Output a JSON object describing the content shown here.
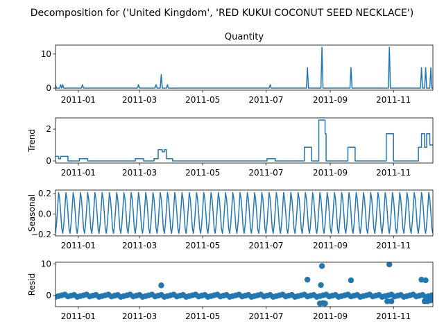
{
  "figure": {
    "suptitle": "Decomposition for ('United Kingdom', 'RED KUKUI COCONUT SEED NECKLACE')"
  },
  "colors": {
    "line": "#1f77b4",
    "axis": "#000000",
    "background": "#ffffff"
  },
  "chart_data": [
    {
      "type": "line",
      "title": "Quantity",
      "ylabel": "",
      "xlim": [
        "2010-12-10",
        "2011-12-09"
      ],
      "ylim": [
        -0.6,
        12.6
      ],
      "yticks": [
        0,
        10
      ],
      "xticks": [
        "2011-01",
        "2011-03",
        "2011-05",
        "2011-07",
        "2011-09",
        "2011-11"
      ],
      "spikes": [
        {
          "x": "2010-12-10",
          "y": 1
        },
        {
          "x": "2010-12-15",
          "y": 1
        },
        {
          "x": "2010-12-17",
          "y": 1
        },
        {
          "x": "2011-01-05",
          "y": 1
        },
        {
          "x": "2011-02-28",
          "y": 1
        },
        {
          "x": "2011-03-17",
          "y": 1
        },
        {
          "x": "2011-03-22",
          "y": 4
        },
        {
          "x": "2011-03-28",
          "y": 1
        },
        {
          "x": "2011-07-05",
          "y": 1
        },
        {
          "x": "2011-08-10",
          "y": 6
        },
        {
          "x": "2011-08-24",
          "y": 12
        },
        {
          "x": "2011-09-21",
          "y": 6
        },
        {
          "x": "2011-10-28",
          "y": 12
        },
        {
          "x": "2011-11-28",
          "y": 6
        },
        {
          "x": "2011-12-02",
          "y": 6
        },
        {
          "x": "2011-12-07",
          "y": 6
        }
      ]
    },
    {
      "type": "line",
      "title": "",
      "ylabel": "Trend",
      "xlim": [
        "2010-12-10",
        "2011-12-09"
      ],
      "ylim": [
        -0.13,
        2.7
      ],
      "yticks": [
        0,
        2
      ],
      "xticks": [
        "2011-01",
        "2011-03",
        "2011-05",
        "2011-07",
        "2011-09",
        "2011-11"
      ],
      "steps": [
        {
          "start": "2010-12-10",
          "end": "2010-12-13",
          "y": 0.29
        },
        {
          "start": "2010-12-13",
          "end": "2010-12-15",
          "y": 0.14
        },
        {
          "start": "2010-12-15",
          "end": "2010-12-22",
          "y": 0.29
        },
        {
          "start": "2010-12-22",
          "end": "2011-01-02",
          "y": 0.0
        },
        {
          "start": "2011-01-02",
          "end": "2011-01-10",
          "y": 0.14
        },
        {
          "start": "2011-01-10",
          "end": "2011-02-25",
          "y": 0.0
        },
        {
          "start": "2011-02-25",
          "end": "2011-03-05",
          "y": 0.14
        },
        {
          "start": "2011-03-05",
          "end": "2011-03-15",
          "y": 0.0
        },
        {
          "start": "2011-03-15",
          "end": "2011-03-19",
          "y": 0.14
        },
        {
          "start": "2011-03-19",
          "end": "2011-03-23",
          "y": 0.71
        },
        {
          "start": "2011-03-23",
          "end": "2011-03-25",
          "y": 0.57
        },
        {
          "start": "2011-03-25",
          "end": "2011-03-27",
          "y": 0.71
        },
        {
          "start": "2011-03-27",
          "end": "2011-04-02",
          "y": 0.14
        },
        {
          "start": "2011-04-02",
          "end": "2011-07-02",
          "y": 0.0
        },
        {
          "start": "2011-07-02",
          "end": "2011-07-10",
          "y": 0.14
        },
        {
          "start": "2011-07-10",
          "end": "2011-08-07",
          "y": 0.0
        },
        {
          "start": "2011-08-07",
          "end": "2011-08-14",
          "y": 0.86
        },
        {
          "start": "2011-08-14",
          "end": "2011-08-21",
          "y": 0.0
        },
        {
          "start": "2011-08-21",
          "end": "2011-08-27",
          "y": 2.57
        },
        {
          "start": "2011-08-27",
          "end": "2011-08-28",
          "y": 1.71
        },
        {
          "start": "2011-08-28",
          "end": "2011-09-18",
          "y": 0.0
        },
        {
          "start": "2011-09-18",
          "end": "2011-09-25",
          "y": 0.86
        },
        {
          "start": "2011-09-25",
          "end": "2011-10-25",
          "y": 0.0
        },
        {
          "start": "2011-10-25",
          "end": "2011-11-01",
          "y": 1.71
        },
        {
          "start": "2011-11-01",
          "end": "2011-11-25",
          "y": 0.0
        },
        {
          "start": "2011-11-25",
          "end": "2011-11-28",
          "y": 0.86
        },
        {
          "start": "2011-11-28",
          "end": "2011-12-01",
          "y": 1.71
        },
        {
          "start": "2011-12-01",
          "end": "2011-12-03",
          "y": 0.86
        },
        {
          "start": "2011-12-03",
          "end": "2011-12-06",
          "y": 1.71
        },
        {
          "start": "2011-12-06",
          "end": "2011-12-09",
          "y": 1.0
        }
      ]
    },
    {
      "type": "line",
      "title": "",
      "ylabel": "Seasonal",
      "xlim": [
        "2010-12-10",
        "2011-12-09"
      ],
      "ylim": [
        -0.215,
        0.235
      ],
      "yticks": [
        -0.2,
        0.0,
        0.2
      ],
      "xticks": [
        "2011-01",
        "2011-03",
        "2011-05",
        "2011-07",
        "2011-09",
        "2011-11"
      ],
      "period_days": 7,
      "weekly_pattern": [
        -0.19,
        -0.1,
        0.05,
        0.21,
        0.15,
        0.02,
        -0.14
      ]
    },
    {
      "type": "scatter",
      "title": "",
      "ylabel": "Resid",
      "xlim": [
        "2010-12-10",
        "2011-12-09"
      ],
      "ylim": [
        -3.5,
        10.5
      ],
      "yticks": [
        0,
        10
      ],
      "xticks": [
        "2011-01",
        "2011-03",
        "2011-05",
        "2011-07",
        "2011-09",
        "2011-11"
      ],
      "baseline": -0.05,
      "outliers": [
        {
          "x": "2011-03-22",
          "y": 3.2
        },
        {
          "x": "2011-08-10",
          "y": 5.0
        },
        {
          "x": "2011-08-24",
          "y": 9.3
        },
        {
          "x": "2011-08-23",
          "y": 3.3
        },
        {
          "x": "2011-08-22",
          "y": -2.5
        },
        {
          "x": "2011-08-25",
          "y": -2.4
        },
        {
          "x": "2011-08-27",
          "y": -2.5
        },
        {
          "x": "2011-09-21",
          "y": 4.8
        },
        {
          "x": "2011-10-28",
          "y": 9.8
        },
        {
          "x": "2011-10-26",
          "y": -1.8
        },
        {
          "x": "2011-10-30",
          "y": -1.8
        },
        {
          "x": "2011-11-28",
          "y": 5.0
        },
        {
          "x": "2011-12-02",
          "y": 4.8
        },
        {
          "x": "2011-12-01",
          "y": -1.8
        },
        {
          "x": "2011-12-04",
          "y": -1.8
        },
        {
          "x": "2011-12-07",
          "y": -1.5
        }
      ]
    }
  ]
}
